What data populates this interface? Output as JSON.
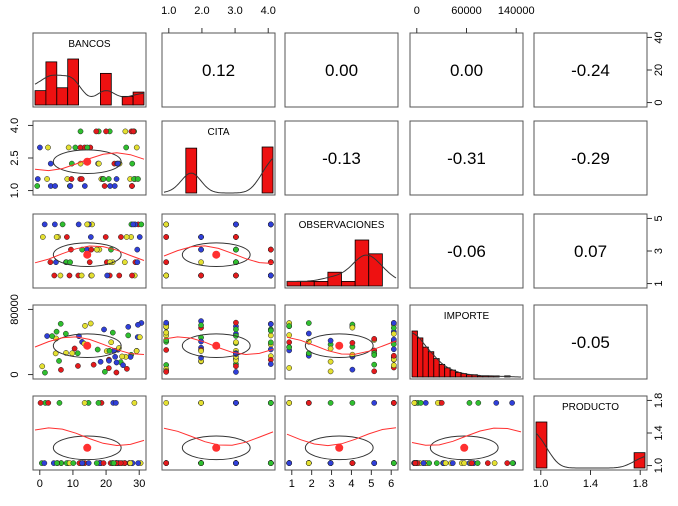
{
  "chart_data": {
    "type": "scatterplot-matrix",
    "variables": [
      "BANCOS",
      "CITA",
      "OBSERVACIONES",
      "IMPORTE",
      "PRODUCTO"
    ],
    "correlations": [
      {
        "row": 0,
        "col": 1,
        "label": "0.12"
      },
      {
        "row": 0,
        "col": 2,
        "label": "0.00"
      },
      {
        "row": 0,
        "col": 3,
        "label": "0.00"
      },
      {
        "row": 0,
        "col": 4,
        "label": "-0.24"
      },
      {
        "row": 1,
        "col": 2,
        "label": "-0.13"
      },
      {
        "row": 1,
        "col": 3,
        "label": "-0.31"
      },
      {
        "row": 1,
        "col": 4,
        "label": "-0.29"
      },
      {
        "row": 2,
        "col": 3,
        "label": "-0.06"
      },
      {
        "row": 2,
        "col": 4,
        "label": "0.07"
      },
      {
        "row": 3,
        "col": 4,
        "label": "-0.05"
      }
    ],
    "axes": {
      "top": [
        {
          "col": 1,
          "ticks": [
            "1.0",
            "2.0",
            "3.0",
            "4.0"
          ]
        },
        {
          "col": 3,
          "ticks": [
            "0",
            "60000",
            "140000"
          ]
        }
      ],
      "bottom": [
        {
          "col": 0,
          "ticks": [
            "0",
            "10",
            "20",
            "30"
          ]
        },
        {
          "col": 2,
          "ticks": [
            "1",
            "2",
            "3",
            "4",
            "5",
            "6"
          ]
        },
        {
          "col": 4,
          "ticks": [
            "1.0",
            "1.4",
            "1.8"
          ]
        }
      ],
      "left": [
        {
          "row": 1,
          "ticks": [
            "1.0",
            "2.5",
            "4.0"
          ]
        },
        {
          "row": 3,
          "ticks": [
            "0",
            "80000"
          ]
        }
      ],
      "right": [
        {
          "row": 0,
          "ticks": [
            "0",
            "20",
            "40"
          ]
        },
        {
          "row": 2,
          "ticks": [
            "1",
            "3",
            "5"
          ]
        },
        {
          "row": 4,
          "ticks": [
            "1.0",
            "1.4",
            "1.8"
          ]
        }
      ]
    },
    "histograms": [
      {
        "var": "BANCOS",
        "counts": [
          10,
          30,
          12,
          32,
          0,
          0,
          22,
          0,
          6,
          9
        ]
      },
      {
        "var": "CITA",
        "counts": [
          0,
          0,
          40,
          0,
          0,
          0,
          0,
          0,
          0,
          41
        ]
      },
      {
        "var": "OBSERVACIONES",
        "counts": [
          1,
          1,
          1,
          3,
          1,
          10,
          7,
          0
        ]
      },
      {
        "var": "IMPORTE",
        "counts": [
          40,
          34,
          26,
          22,
          16,
          11,
          8,
          6,
          4,
          3,
          2,
          2,
          1,
          1,
          1,
          1,
          0,
          1,
          0,
          0
        ]
      },
      {
        "var": "PRODUCTO",
        "counts": [
          36,
          0,
          0,
          0,
          0,
          0,
          0,
          0,
          0,
          12
        ]
      }
    ],
    "point_colors": [
      "#2f3fd8",
      "#2fbf2f",
      "#e4e031",
      "#e41a1c"
    ],
    "smooth_color": "#ff3030",
    "bar_color": "#ee1111"
  }
}
